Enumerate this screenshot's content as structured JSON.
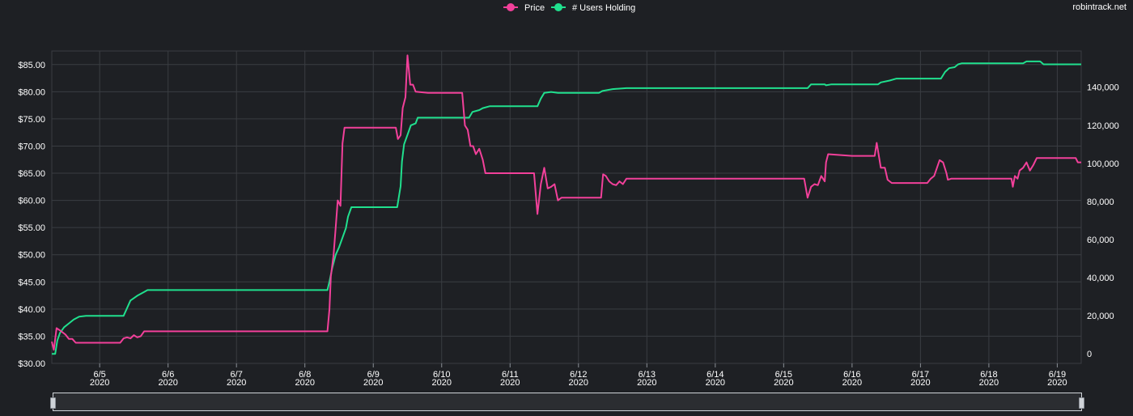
{
  "watermark": "robintrack.net",
  "colors": {
    "price": "#f2409a",
    "users": "#20e08e",
    "background": "#1e2024",
    "grid": "#3a3d42",
    "text": "#ffffff"
  },
  "chart_data": {
    "type": "line",
    "grid": true,
    "legend_position": "top-center",
    "x_ticks": [
      {
        "x": 5.0,
        "label": "6/5",
        "year": "2020"
      },
      {
        "x": 6.0,
        "label": "6/6",
        "year": "2020"
      },
      {
        "x": 7.0,
        "label": "6/7",
        "year": "2020"
      },
      {
        "x": 8.0,
        "label": "6/8",
        "year": "2020"
      },
      {
        "x": 9.0,
        "label": "6/9",
        "year": "2020"
      },
      {
        "x": 10.0,
        "label": "6/10",
        "year": "2020"
      },
      {
        "x": 11.0,
        "label": "6/11",
        "year": "2020"
      },
      {
        "x": 12.0,
        "label": "6/12",
        "year": "2020"
      },
      {
        "x": 13.0,
        "label": "6/13",
        "year": "2020"
      },
      {
        "x": 14.0,
        "label": "6/14",
        "year": "2020"
      },
      {
        "x": 15.0,
        "label": "6/15",
        "year": "2020"
      },
      {
        "x": 16.0,
        "label": "6/16",
        "year": "2020"
      },
      {
        "x": 17.0,
        "label": "6/17",
        "year": "2020"
      },
      {
        "x": 18.0,
        "label": "6/18",
        "year": "2020"
      },
      {
        "x": 19.0,
        "label": "6/19",
        "year": "2020"
      }
    ],
    "x_range": [
      4.3,
      19.35
    ],
    "y_left": {
      "range": [
        30,
        87.5
      ],
      "ticks": [
        30,
        35,
        40,
        45,
        50,
        55,
        60,
        65,
        70,
        75,
        80,
        85
      ],
      "tick_labels": [
        "$30.00",
        "$35.00",
        "$40.00",
        "$45.00",
        "$50.00",
        "$55.00",
        "$60.00",
        "$65.00",
        "$70.00",
        "$75.00",
        "$80.00",
        "$85.00"
      ]
    },
    "y_right": {
      "range": [
        -5000,
        159000
      ],
      "ticks": [
        0,
        20000,
        40000,
        60000,
        80000,
        100000,
        120000,
        140000
      ],
      "tick_labels": [
        "0",
        "20,000",
        "40,000",
        "60,000",
        "80,000",
        "100,000",
        "120,000",
        "140,000"
      ]
    },
    "series": [
      {
        "name": "Price",
        "axis": "left",
        "points": [
          [
            4.3,
            34.0
          ],
          [
            4.33,
            32.5
          ],
          [
            4.37,
            36.5
          ],
          [
            4.45,
            35.8
          ],
          [
            4.5,
            35.3
          ],
          [
            4.55,
            34.5
          ],
          [
            4.6,
            34.5
          ],
          [
            4.65,
            33.8
          ],
          [
            4.7,
            33.8
          ],
          [
            5.0,
            33.8
          ],
          [
            5.3,
            33.8
          ],
          [
            5.35,
            34.6
          ],
          [
            5.4,
            34.8
          ],
          [
            5.45,
            34.6
          ],
          [
            5.5,
            35.2
          ],
          [
            5.55,
            34.8
          ],
          [
            5.6,
            35.0
          ],
          [
            5.65,
            35.9
          ],
          [
            6.0,
            35.9
          ],
          [
            7.0,
            35.9
          ],
          [
            8.0,
            35.9
          ],
          [
            8.33,
            35.9
          ],
          [
            8.36,
            40.0
          ],
          [
            8.38,
            46.0
          ],
          [
            8.42,
            50.0
          ],
          [
            8.45,
            55.0
          ],
          [
            8.48,
            60.0
          ],
          [
            8.52,
            59.0
          ],
          [
            8.55,
            70.5
          ],
          [
            8.58,
            73.4
          ],
          [
            8.8,
            73.4
          ],
          [
            9.0,
            73.4
          ],
          [
            9.33,
            73.4
          ],
          [
            9.36,
            71.3
          ],
          [
            9.4,
            72.0
          ],
          [
            9.43,
            77.0
          ],
          [
            9.47,
            79.0
          ],
          [
            9.5,
            86.7
          ],
          [
            9.54,
            81.3
          ],
          [
            9.58,
            81.3
          ],
          [
            9.62,
            80.0
          ],
          [
            9.8,
            79.8
          ],
          [
            10.0,
            79.8
          ],
          [
            10.3,
            79.8
          ],
          [
            10.34,
            73.8
          ],
          [
            10.38,
            73.0
          ],
          [
            10.42,
            70.0
          ],
          [
            10.46,
            70.0
          ],
          [
            10.5,
            68.5
          ],
          [
            10.55,
            69.5
          ],
          [
            10.6,
            67.5
          ],
          [
            10.64,
            65.0
          ],
          [
            10.8,
            65.0
          ],
          [
            11.0,
            65.0
          ],
          [
            11.35,
            65.0
          ],
          [
            11.4,
            57.5
          ],
          [
            11.45,
            63.0
          ],
          [
            11.5,
            66.0
          ],
          [
            11.55,
            62.2
          ],
          [
            11.6,
            62.5
          ],
          [
            11.65,
            63.0
          ],
          [
            11.7,
            60.0
          ],
          [
            11.75,
            60.5
          ],
          [
            12.0,
            60.5
          ],
          [
            12.33,
            60.5
          ],
          [
            12.36,
            64.8
          ],
          [
            12.4,
            64.5
          ],
          [
            12.45,
            63.5
          ],
          [
            12.5,
            63.0
          ],
          [
            12.55,
            62.8
          ],
          [
            12.6,
            63.5
          ],
          [
            12.65,
            63.0
          ],
          [
            12.7,
            64.0
          ],
          [
            13.0,
            64.0
          ],
          [
            14.0,
            64.0
          ],
          [
            15.3,
            64.0
          ],
          [
            15.35,
            60.5
          ],
          [
            15.4,
            62.5
          ],
          [
            15.45,
            63.0
          ],
          [
            15.5,
            62.8
          ],
          [
            15.55,
            64.5
          ],
          [
            15.6,
            63.5
          ],
          [
            15.62,
            67.0
          ],
          [
            15.65,
            68.5
          ],
          [
            16.0,
            68.2
          ],
          [
            16.33,
            68.2
          ],
          [
            16.36,
            70.6
          ],
          [
            16.42,
            66.0
          ],
          [
            16.48,
            66.0
          ],
          [
            16.52,
            63.8
          ],
          [
            16.58,
            63.2
          ],
          [
            17.0,
            63.2
          ],
          [
            17.1,
            63.2
          ],
          [
            17.15,
            64.0
          ],
          [
            17.2,
            64.5
          ],
          [
            17.28,
            67.4
          ],
          [
            17.33,
            67.0
          ],
          [
            17.38,
            65.0
          ],
          [
            17.4,
            63.8
          ],
          [
            17.45,
            64.0
          ],
          [
            18.0,
            64.0
          ],
          [
            18.33,
            64.0
          ],
          [
            18.35,
            62.5
          ],
          [
            18.38,
            64.5
          ],
          [
            18.42,
            64.0
          ],
          [
            18.45,
            65.5
          ],
          [
            18.5,
            66.0
          ],
          [
            18.55,
            67.0
          ],
          [
            18.6,
            65.5
          ],
          [
            18.65,
            66.5
          ],
          [
            18.7,
            67.8
          ],
          [
            19.0,
            67.8
          ],
          [
            19.27,
            67.8
          ],
          [
            19.3,
            67.0
          ],
          [
            19.35,
            67.0
          ]
        ]
      },
      {
        "name": "# Users Holding",
        "axis": "right",
        "points": [
          [
            4.3,
            0
          ],
          [
            4.35,
            0
          ],
          [
            4.38,
            7000
          ],
          [
            4.42,
            11000
          ],
          [
            4.48,
            14000
          ],
          [
            4.55,
            16000
          ],
          [
            4.62,
            18000
          ],
          [
            4.7,
            19500
          ],
          [
            4.8,
            20000
          ],
          [
            5.0,
            20000
          ],
          [
            5.35,
            20000
          ],
          [
            5.4,
            24000
          ],
          [
            5.45,
            28000
          ],
          [
            5.55,
            30500
          ],
          [
            5.65,
            32500
          ],
          [
            5.7,
            33500
          ],
          [
            6.0,
            33500
          ],
          [
            7.0,
            33500
          ],
          [
            8.0,
            33500
          ],
          [
            8.33,
            33500
          ],
          [
            8.36,
            38000
          ],
          [
            8.4,
            45000
          ],
          [
            8.45,
            52000
          ],
          [
            8.5,
            56000
          ],
          [
            8.55,
            61000
          ],
          [
            8.6,
            66000
          ],
          [
            8.63,
            72000
          ],
          [
            8.68,
            77000
          ],
          [
            9.0,
            77000
          ],
          [
            9.35,
            77000
          ],
          [
            9.4,
            88000
          ],
          [
            9.42,
            101000
          ],
          [
            9.45,
            110000
          ],
          [
            9.5,
            115000
          ],
          [
            9.55,
            120000
          ],
          [
            9.62,
            121000
          ],
          [
            9.65,
            124000
          ],
          [
            10.0,
            124000
          ],
          [
            10.4,
            124000
          ],
          [
            10.45,
            127000
          ],
          [
            10.55,
            128000
          ],
          [
            10.6,
            129000
          ],
          [
            10.7,
            130000
          ],
          [
            11.0,
            130000
          ],
          [
            11.4,
            130000
          ],
          [
            11.45,
            134000
          ],
          [
            11.5,
            137000
          ],
          [
            11.6,
            137500
          ],
          [
            11.7,
            137000
          ],
          [
            12.0,
            137000
          ],
          [
            12.3,
            137000
          ],
          [
            12.35,
            138000
          ],
          [
            12.5,
            139000
          ],
          [
            12.7,
            139500
          ],
          [
            13.0,
            139500
          ],
          [
            14.0,
            139500
          ],
          [
            15.35,
            139500
          ],
          [
            15.4,
            141500
          ],
          [
            15.6,
            141500
          ],
          [
            15.62,
            141000
          ],
          [
            15.7,
            141500
          ],
          [
            16.0,
            141500
          ],
          [
            16.38,
            141500
          ],
          [
            16.42,
            142500
          ],
          [
            16.55,
            143500
          ],
          [
            16.65,
            144500
          ],
          [
            17.0,
            144500
          ],
          [
            17.3,
            144500
          ],
          [
            17.36,
            148000
          ],
          [
            17.42,
            150000
          ],
          [
            17.5,
            150500
          ],
          [
            17.55,
            152000
          ],
          [
            17.6,
            152500
          ],
          [
            18.0,
            152500
          ],
          [
            18.5,
            152500
          ],
          [
            18.55,
            153500
          ],
          [
            18.75,
            153500
          ],
          [
            18.8,
            152000
          ],
          [
            19.0,
            152000
          ],
          [
            19.35,
            152000
          ]
        ]
      }
    ]
  }
}
